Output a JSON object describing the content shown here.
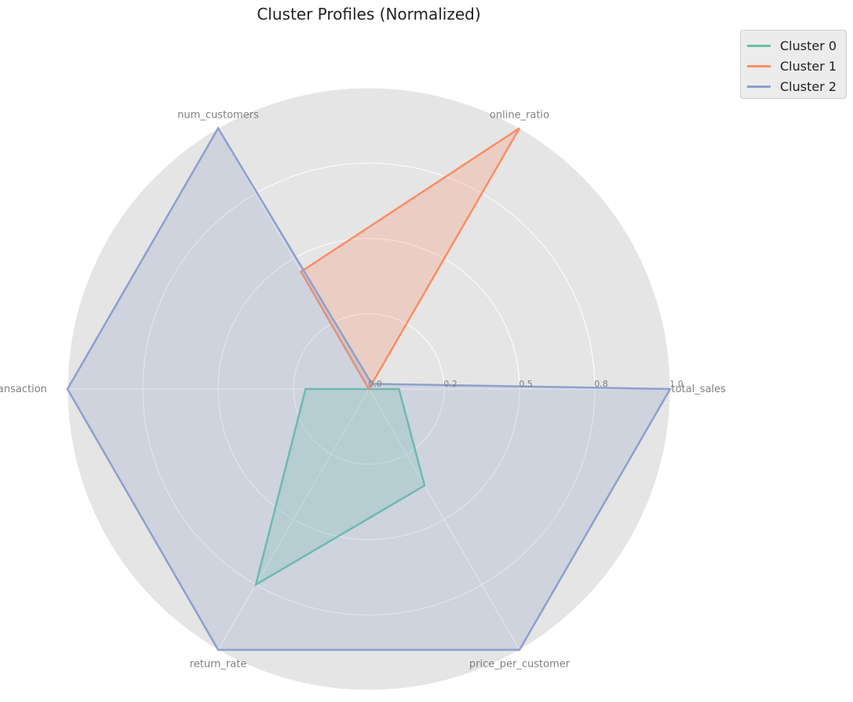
{
  "chart_data": {
    "type": "radar",
    "title": "Cluster Profiles (Normalized)",
    "axes": [
      "total_sales",
      "online_ratio",
      "num_customers",
      "avg_transaction",
      "return_rate",
      "price_per_customer"
    ],
    "rlim": [
      0,
      1.0
    ],
    "radial_ticks": [
      0.0,
      0.25,
      0.5,
      0.75,
      1.0
    ],
    "radial_tick_labels": [
      "0.0",
      "0.2",
      "0.5",
      "0.8",
      "1.0"
    ],
    "grid": true,
    "legend_position": "top-right",
    "series": [
      {
        "name": "Cluster 0",
        "values": [
          0.1,
          0.0,
          0.0,
          0.21,
          0.75,
          0.37
        ],
        "color": "#66c2a5"
      },
      {
        "name": "Cluster 1",
        "values": [
          0.0,
          1.0,
          0.45,
          0.0,
          0.0,
          0.0
        ],
        "color": "#fc8d62"
      },
      {
        "name": "Cluster 2",
        "values": [
          1.0,
          0.02,
          1.0,
          1.0,
          1.0,
          1.0
        ],
        "color": "#8da0cb"
      }
    ]
  },
  "style": {
    "plot_background": "#e5e5e5",
    "grid_color": "#ffffff",
    "label_color": "#808080"
  }
}
